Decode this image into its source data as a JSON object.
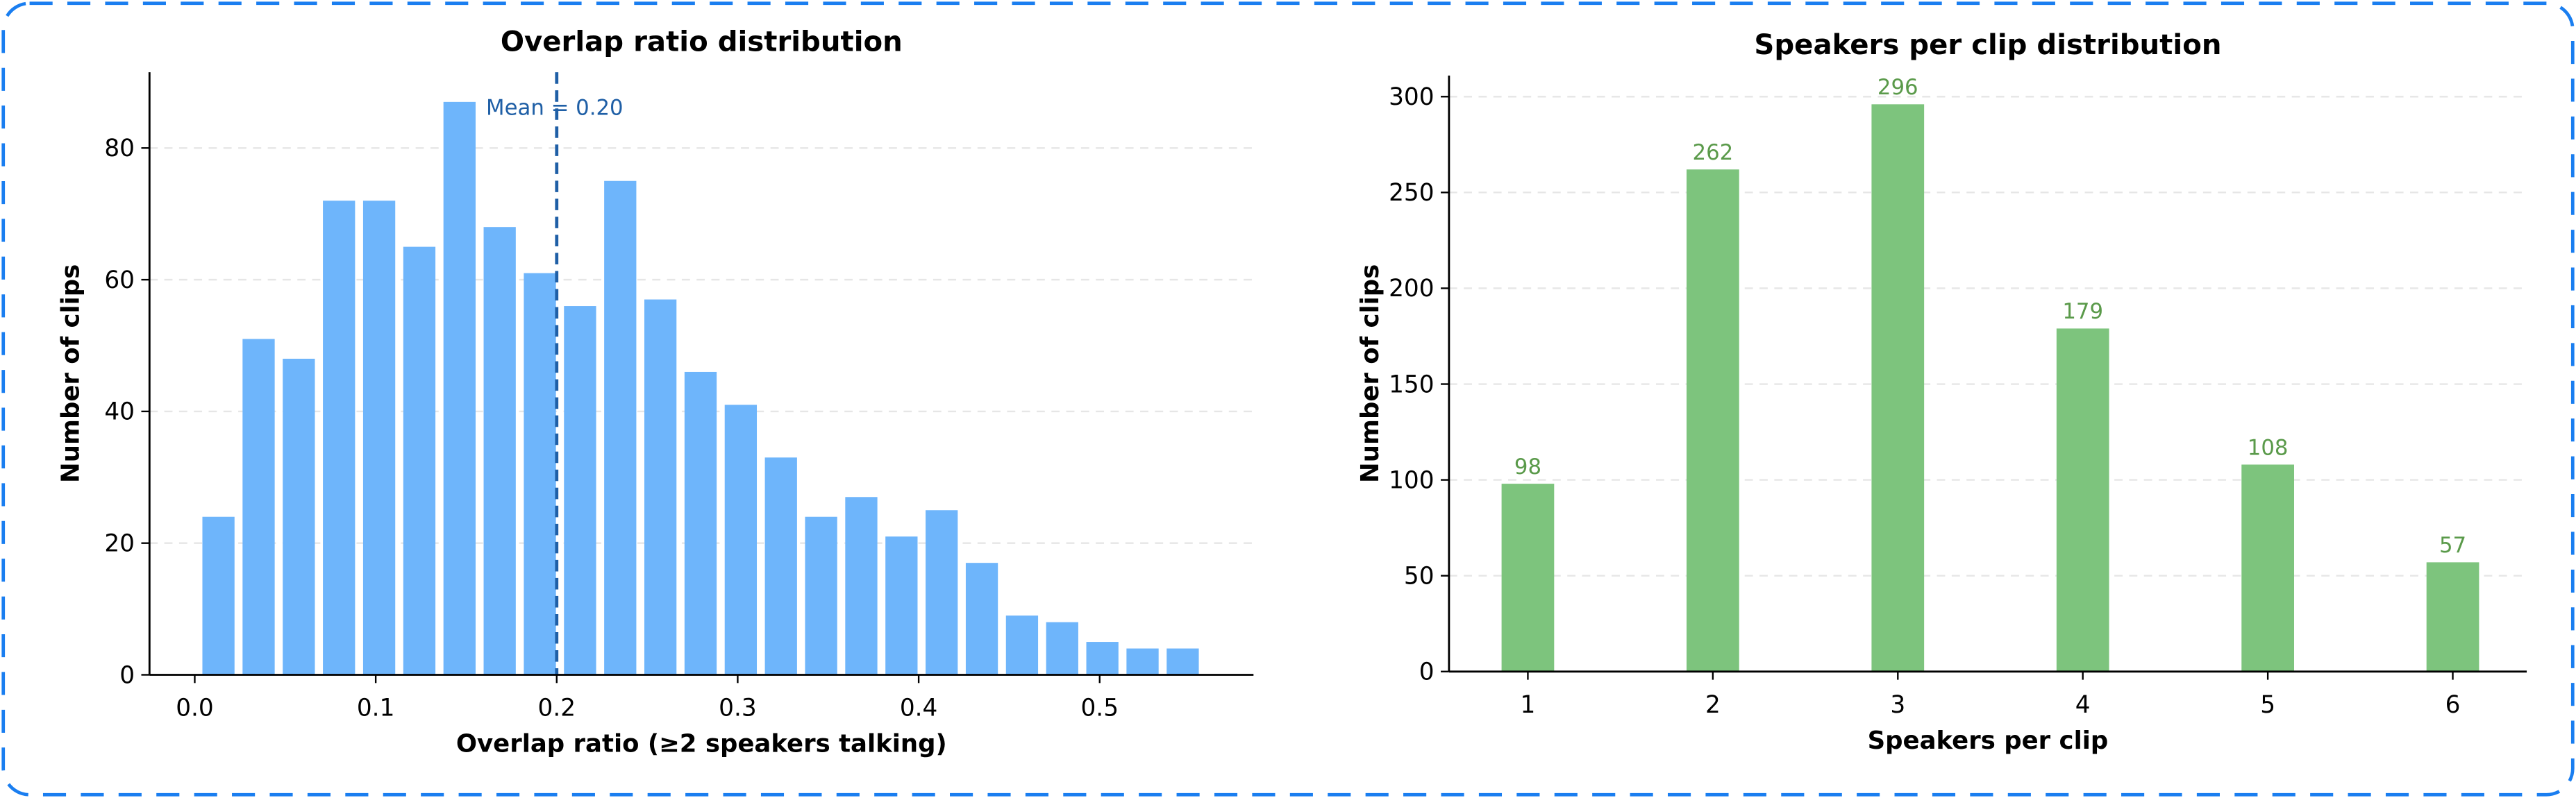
{
  "chart_data": [
    {
      "type": "histogram",
      "title": "Overlap ratio distribution",
      "xlabel": "Overlap ratio (≥2 speakers talking)",
      "ylabel": "Number of clips",
      "bins": [
        0.002,
        0.0242,
        0.0464,
        0.0686,
        0.0908,
        0.113,
        0.1352,
        0.1574,
        0.1796,
        0.2018,
        0.224,
        0.2462,
        0.2684,
        0.2906,
        0.3128,
        0.335,
        0.3572,
        0.3794,
        0.4016,
        0.4238,
        0.446,
        0.4682,
        0.4904,
        0.5126,
        0.5348,
        0.557
      ],
      "values": [
        24,
        51,
        48,
        72,
        72,
        65,
        87,
        68,
        61,
        56,
        75,
        57,
        46,
        41,
        33,
        24,
        27,
        21,
        25,
        17,
        9,
        8,
        5,
        4,
        4
      ],
      "color": "#6eb5fb",
      "mean": 0.2,
      "mean_label": "Mean = 0.20",
      "mean_color": "#1f5fa6",
      "xlim": [
        -0.025,
        0.585
      ],
      "ylim": [
        0,
        91.5
      ],
      "xticks": [
        {
          "value": 0,
          "label": "0.0"
        },
        0.1,
        0.2,
        0.3,
        0.4,
        0.5
      ],
      "yticks": [
        0,
        20,
        40,
        60,
        80
      ],
      "grid": true
    },
    {
      "type": "bar",
      "title": "Speakers per clip distribution",
      "xlabel": "Speakers per clip",
      "ylabel": "Number of clips",
      "categories": [
        "1",
        "2",
        "3",
        "4",
        "5",
        "6"
      ],
      "values": [
        98,
        262,
        296,
        179,
        108,
        57
      ],
      "color": "#7dc47d",
      "label_color": "#5a9a4a",
      "ylim": [
        0,
        311
      ],
      "yticks": [
        0,
        50,
        100,
        150,
        200,
        250,
        300
      ],
      "grid": true
    }
  ]
}
